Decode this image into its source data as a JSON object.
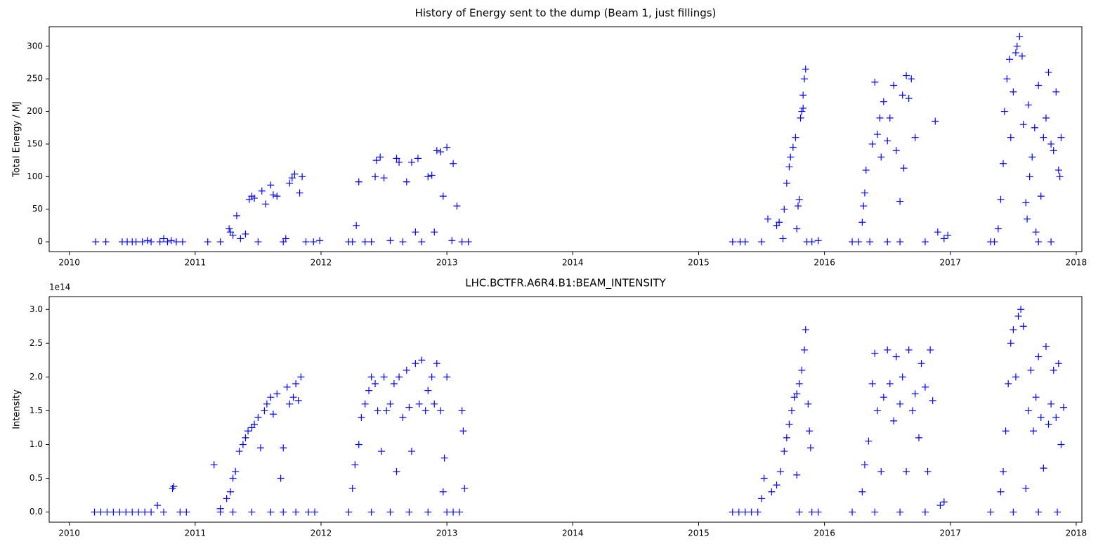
{
  "chart_data": [
    {
      "type": "scatter",
      "title": "History of Energy sent to the dump (Beam 1, just fillings)",
      "ylabel": "Total Energy / MJ",
      "marker": "+",
      "color": "#0000ff",
      "xlim": [
        2009.84,
        2018.045
      ],
      "xticks": [
        2010,
        2011,
        2012,
        2013,
        2014,
        2015,
        2016,
        2017,
        2018
      ],
      "ylim": [
        -15,
        330
      ],
      "yticks": [
        0,
        50,
        100,
        150,
        200,
        250,
        300
      ],
      "x": [
        2010.21,
        2010.29,
        2010.42,
        2010.46,
        2010.5,
        2010.53,
        2010.58,
        2010.62,
        2010.65,
        2010.72,
        2010.75,
        2010.78,
        2010.81,
        2010.85,
        2010.9,
        2011.1,
        2011.2,
        2011.27,
        2011.28,
        2011.3,
        2011.33,
        2011.36,
        2011.4,
        2011.43,
        2011.45,
        2011.47,
        2011.5,
        2011.53,
        2011.56,
        2011.6,
        2011.62,
        2011.65,
        2011.7,
        2011.72,
        2011.75,
        2011.77,
        2011.79,
        2011.83,
        2011.85,
        2011.88,
        2011.94,
        2011.99,
        2012.22,
        2012.25,
        2012.28,
        2012.3,
        2012.35,
        2012.4,
        2012.43,
        2012.44,
        2012.47,
        2012.5,
        2012.55,
        2012.6,
        2012.62,
        2012.65,
        2012.68,
        2012.72,
        2012.75,
        2012.77,
        2012.8,
        2012.85,
        2012.88,
        2012.9,
        2012.92,
        2012.95,
        2012.97,
        2013.0,
        2013.04,
        2013.05,
        2013.08,
        2013.12,
        2013.17,
        2015.27,
        2015.33,
        2015.37,
        2015.5,
        2015.55,
        2015.62,
        2015.64,
        2015.67,
        2015.68,
        2015.7,
        2015.72,
        2015.73,
        2015.75,
        2015.77,
        2015.78,
        2015.79,
        2015.8,
        2015.81,
        2015.82,
        2015.83,
        2015.84,
        2015.85,
        2015.83,
        2015.86,
        2015.9,
        2015.95,
        2016.22,
        2016.27,
        2016.3,
        2016.31,
        2016.32,
        2016.33,
        2016.36,
        2016.38,
        2016.4,
        2016.42,
        2016.44,
        2016.45,
        2016.47,
        2016.5,
        2016.52,
        2016.55,
        2016.57,
        2016.6,
        2016.62,
        2016.63,
        2016.65,
        2016.67,
        2016.69,
        2016.72,
        2016.5,
        2016.6,
        2016.8,
        2016.88,
        2016.9,
        2016.95,
        2016.98,
        2017.32,
        2017.35,
        2017.38,
        2017.4,
        2017.42,
        2017.43,
        2017.45,
        2017.47,
        2017.48,
        2017.5,
        2017.52,
        2017.53,
        2017.55,
        2017.57,
        2017.58,
        2017.6,
        2017.61,
        2017.62,
        2017.63,
        2017.65,
        2017.67,
        2017.68,
        2017.7,
        2017.7,
        2017.72,
        2017.74,
        2017.76,
        2017.78,
        2017.8,
        2017.8,
        2017.82,
        2017.84,
        2017.86,
        2017.87,
        2017.88
      ],
      "values": [
        0,
        0,
        0,
        0,
        0,
        0,
        0,
        2,
        0,
        0,
        5,
        0,
        2,
        0,
        0,
        0,
        0,
        20,
        15,
        10,
        40,
        5,
        12,
        65,
        70,
        67,
        0,
        78,
        58,
        87,
        72,
        70,
        0,
        5,
        90,
        98,
        104,
        75,
        100,
        0,
        0,
        2,
        0,
        0,
        25,
        92,
        0,
        0,
        100,
        125,
        130,
        98,
        2,
        128,
        122,
        0,
        92,
        122,
        15,
        128,
        0,
        100,
        102,
        15,
        140,
        138,
        70,
        145,
        2,
        120,
        55,
        0,
        0,
        0,
        0,
        0,
        0,
        35,
        25,
        30,
        5,
        50,
        90,
        115,
        130,
        145,
        160,
        20,
        55,
        65,
        190,
        200,
        225,
        250,
        265,
        205,
        0,
        0,
        2,
        0,
        0,
        30,
        55,
        75,
        110,
        0,
        150,
        245,
        165,
        190,
        130,
        215,
        155,
        190,
        240,
        140,
        62,
        225,
        113,
        255,
        220,
        250,
        160,
        0,
        0,
        0,
        185,
        15,
        5,
        10,
        0,
        0,
        20,
        65,
        120,
        200,
        250,
        280,
        160,
        230,
        290,
        300,
        315,
        285,
        180,
        60,
        35,
        210,
        100,
        130,
        175,
        15,
        0,
        240,
        70,
        160,
        190,
        260,
        150,
        0,
        140,
        230,
        110,
        100,
        160
      ]
    },
    {
      "type": "scatter",
      "title": "LHC.BCTFR.A6R4.B1:BEAM_INTENSITY",
      "ylabel": "Intensity",
      "y_offset_label": "1e14",
      "marker": "+",
      "color": "#0000ff",
      "xlim": [
        2009.84,
        2018.045
      ],
      "xticks": [
        2010,
        2011,
        2012,
        2013,
        2014,
        2015,
        2016,
        2017,
        2018
      ],
      "ylim": [
        -0.15,
        3.19
      ],
      "yticks": [
        {
          "value": 0,
          "label": "0.0"
        },
        0.5,
        {
          "value": 1,
          "label": "1.0"
        },
        1.5,
        {
          "value": 2,
          "label": "2.0"
        },
        2.5,
        {
          "value": 3,
          "label": "3.0"
        }
      ],
      "x": [
        2010.2,
        2010.25,
        2010.3,
        2010.35,
        2010.4,
        2010.45,
        2010.5,
        2010.55,
        2010.6,
        2010.65,
        2010.7,
        2010.75,
        2010.82,
        2010.83,
        2010.88,
        2010.93,
        2011.15,
        2011.2,
        2011.25,
        2011.28,
        2011.3,
        2011.32,
        2011.35,
        2011.38,
        2011.4,
        2011.42,
        2011.45,
        2011.47,
        2011.5,
        2011.52,
        2011.55,
        2011.57,
        2011.6,
        2011.62,
        2011.65,
        2011.68,
        2011.7,
        2011.73,
        2011.75,
        2011.78,
        2011.8,
        2011.82,
        2011.84,
        2011.2,
        2011.3,
        2011.45,
        2011.6,
        2011.7,
        2011.8,
        2011.9,
        2011.95,
        2012.25,
        2012.27,
        2012.3,
        2012.32,
        2012.35,
        2012.38,
        2012.4,
        2012.43,
        2012.45,
        2012.48,
        2012.5,
        2012.52,
        2012.55,
        2012.58,
        2012.6,
        2012.62,
        2012.65,
        2012.68,
        2012.7,
        2012.72,
        2012.75,
        2012.78,
        2012.8,
        2012.83,
        2012.85,
        2012.88,
        2012.9,
        2012.92,
        2012.95,
        2012.97,
        2013.0,
        2012.98,
        2013.12,
        2013.13,
        2013.14,
        2012.22,
        2012.4,
        2012.55,
        2012.7,
        2012.85,
        2013.0,
        2013.05,
        2013.1,
        2015.27,
        2015.32,
        2015.37,
        2015.42,
        2015.47,
        2015.5,
        2015.52,
        2015.58,
        2015.62,
        2015.65,
        2015.68,
        2015.7,
        2015.72,
        2015.74,
        2015.76,
        2015.78,
        2015.8,
        2015.82,
        2015.84,
        2015.85,
        2015.87,
        2015.88,
        2015.89,
        2015.78,
        2015.8,
        2015.9,
        2015.95,
        2016.22,
        2016.3,
        2016.32,
        2016.35,
        2016.38,
        2016.4,
        2016.42,
        2016.45,
        2016.47,
        2016.5,
        2016.52,
        2016.55,
        2016.57,
        2016.6,
        2016.62,
        2016.65,
        2016.67,
        2016.7,
        2016.72,
        2016.75,
        2016.77,
        2016.8,
        2016.82,
        2016.84,
        2016.86,
        2016.92,
        2016.95,
        2016.4,
        2016.6,
        2016.8,
        2017.32,
        2017.4,
        2017.42,
        2017.44,
        2017.46,
        2017.48,
        2017.5,
        2017.52,
        2017.54,
        2017.56,
        2017.58,
        2017.6,
        2017.62,
        2017.64,
        2017.66,
        2017.68,
        2017.7,
        2017.72,
        2017.74,
        2017.76,
        2017.78,
        2017.8,
        2017.82,
        2017.84,
        2017.86,
        2017.88,
        2017.9,
        2017.5,
        2017.7,
        2017.85
      ],
      "values": [
        0,
        0,
        0,
        0,
        0,
        0,
        0,
        0,
        0,
        0,
        0.1,
        0,
        0.35,
        0.38,
        0,
        0,
        0.7,
        0.05,
        0.2,
        0.3,
        0.5,
        0.6,
        0.9,
        1.0,
        1.1,
        1.2,
        1.25,
        1.3,
        1.4,
        0.95,
        1.5,
        1.6,
        1.7,
        1.45,
        1.75,
        0.5,
        0.95,
        1.85,
        1.6,
        1.7,
        1.9,
        1.65,
        2.0,
        0,
        0,
        0,
        0,
        0,
        0,
        0,
        0,
        0.35,
        0.7,
        1.0,
        1.4,
        1.6,
        1.8,
        2.0,
        1.9,
        1.5,
        0.9,
        2.0,
        1.5,
        1.6,
        1.9,
        0.6,
        2.0,
        1.4,
        2.1,
        1.55,
        0.9,
        2.2,
        1.6,
        2.25,
        1.5,
        1.8,
        2.0,
        1.6,
        2.2,
        1.5,
        0.3,
        2.0,
        0.8,
        1.5,
        1.2,
        0.35,
        0,
        0,
        0,
        0,
        0,
        0,
        0,
        0,
        0,
        0,
        0,
        0,
        0,
        0.2,
        0.5,
        0.3,
        0.4,
        0.6,
        0.9,
        1.1,
        1.3,
        1.5,
        1.7,
        1.75,
        1.9,
        2.1,
        2.4,
        2.7,
        1.6,
        1.2,
        0.95,
        0.55,
        0,
        0,
        0,
        0,
        0.3,
        0.7,
        1.05,
        1.9,
        2.35,
        1.5,
        0.6,
        1.7,
        2.4,
        1.9,
        1.35,
        2.3,
        1.6,
        2.0,
        0.6,
        2.4,
        1.5,
        1.75,
        1.1,
        2.2,
        1.85,
        0.6,
        2.4,
        1.65,
        0.1,
        0.15,
        0,
        0,
        0,
        0,
        0.3,
        0.6,
        1.2,
        1.9,
        2.5,
        2.7,
        2.0,
        2.9,
        3.0,
        2.75,
        0.35,
        1.5,
        2.1,
        1.2,
        1.7,
        2.3,
        1.4,
        0.65,
        2.45,
        1.3,
        1.6,
        2.1,
        1.4,
        2.2,
        1.0,
        1.55,
        0,
        0,
        0
      ]
    }
  ]
}
